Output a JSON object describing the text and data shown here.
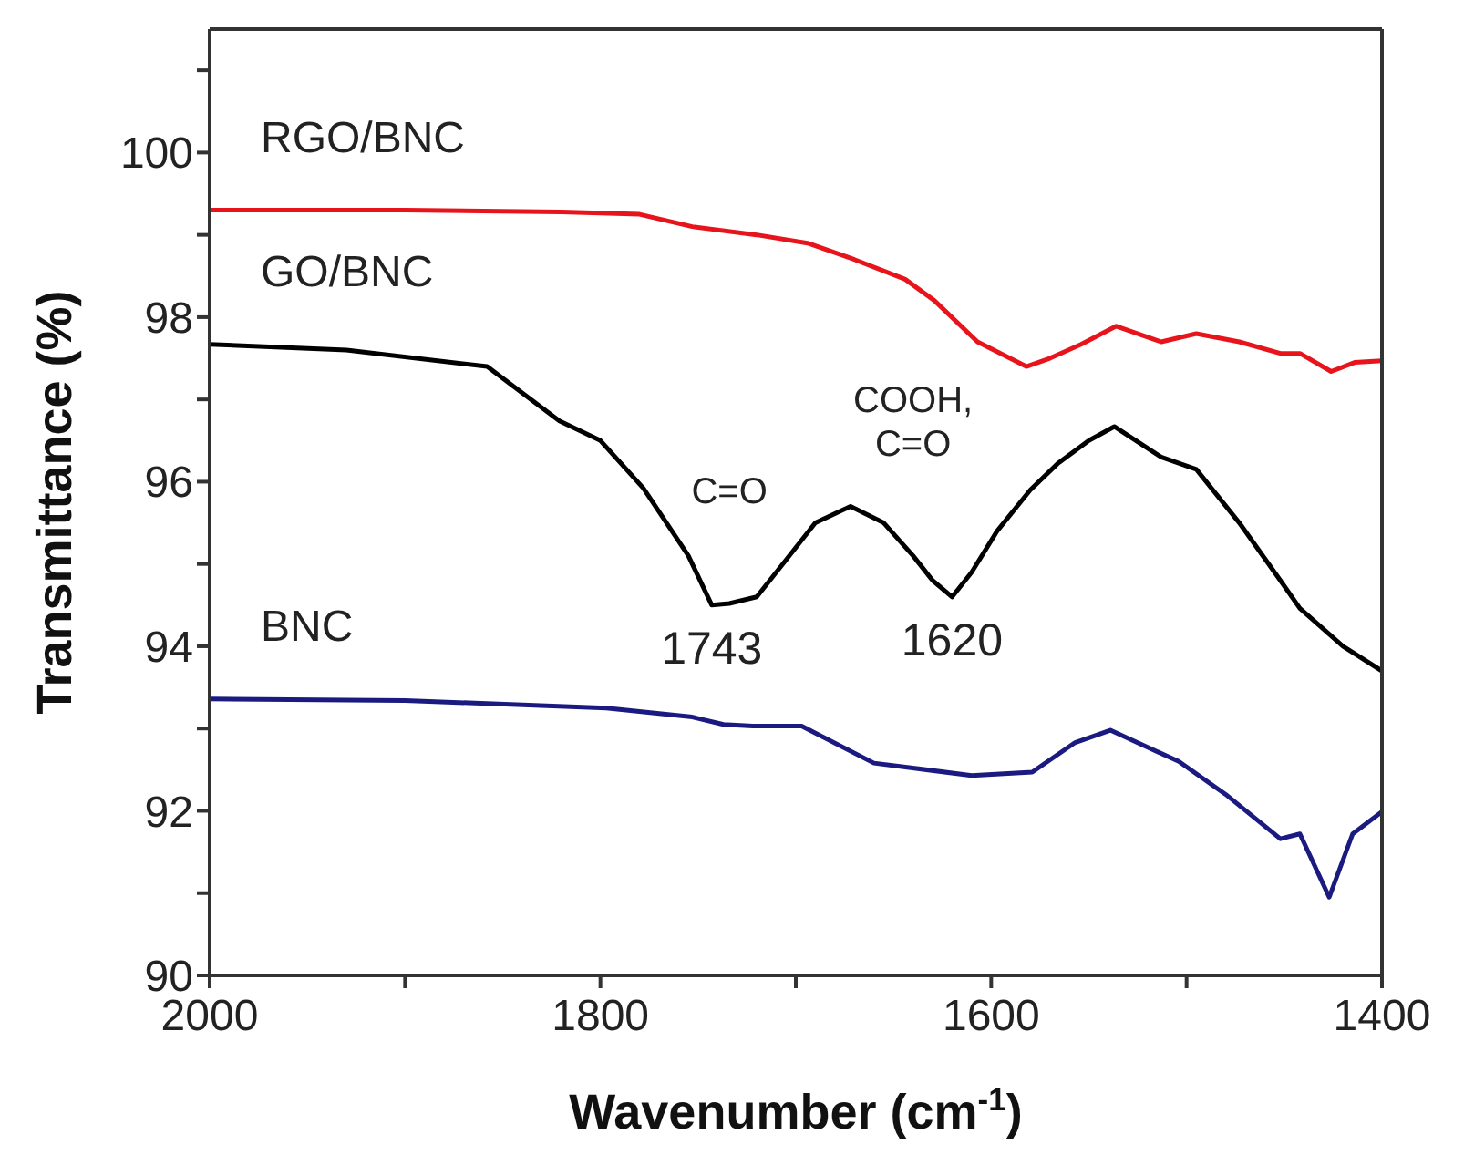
{
  "chart_data": {
    "type": "line",
    "xlabel": "Wavenumber (cm$^{-1}$)",
    "ylabel": "Transmittance (%)",
    "xlim": [
      2000,
      1400
    ],
    "xticks": [
      2000,
      {
        "value": 1900,
        "label": null
      },
      1800,
      {
        "value": 1700,
        "label": null
      },
      1600,
      {
        "value": 1500,
        "label": null
      },
      1400
    ],
    "ylim": [
      90,
      101.5
    ],
    "yticks": [
      90,
      {
        "value": 91,
        "label": null
      },
      92,
      {
        "value": 93,
        "label": null
      },
      94,
      {
        "value": 95,
        "label": null
      },
      96,
      {
        "value": 97,
        "label": null
      },
      98,
      {
        "value": 99,
        "label": null
      },
      100,
      {
        "value": 101,
        "label": null
      }
    ],
    "marker": "none",
    "line_style": "solid",
    "series": [
      {
        "name": "RGO/BNC",
        "color": "#e8141c",
        "x": [
          2000,
          1900,
          1820,
          1780,
          1753,
          1720,
          1694,
          1670,
          1644,
          1629,
          1607,
          1582,
          1570,
          1554,
          1536,
          1513,
          1495,
          1473,
          1452,
          1442,
          1426,
          1414,
          1400
        ],
        "values": [
          99.3,
          99.3,
          99.28,
          99.25,
          99.1,
          99.0,
          98.9,
          98.7,
          98.46,
          98.2,
          97.7,
          97.4,
          97.5,
          97.67,
          97.89,
          97.7,
          97.8,
          97.7,
          97.56,
          97.56,
          97.34,
          97.45,
          97.47
        ]
      },
      {
        "name": "GO/BNC",
        "color": "#000000",
        "x": [
          2000,
          1930,
          1858,
          1821,
          1800,
          1778,
          1755,
          1743,
          1734,
          1720,
          1705,
          1690,
          1672,
          1655,
          1640,
          1630,
          1620,
          1610,
          1597,
          1580,
          1566,
          1550,
          1537,
          1513,
          1495,
          1473,
          1452,
          1442,
          1420,
          1400
        ],
        "values": [
          97.67,
          97.6,
          97.4,
          96.74,
          96.5,
          95.92,
          95.1,
          94.5,
          94.52,
          94.6,
          95.05,
          95.5,
          95.7,
          95.5,
          95.1,
          94.8,
          94.6,
          94.9,
          95.4,
          95.9,
          96.22,
          96.5,
          96.67,
          96.3,
          96.15,
          95.5,
          94.8,
          94.46,
          94.0,
          93.7
        ]
      },
      {
        "name": "BNC",
        "color": "#1a1a80",
        "x": [
          2000,
          1900,
          1797,
          1753,
          1737,
          1722,
          1697,
          1660,
          1610,
          1579,
          1557,
          1539,
          1504,
          1480,
          1452,
          1442,
          1427,
          1415,
          1400
        ],
        "values": [
          93.36,
          93.34,
          93.25,
          93.14,
          93.05,
          93.03,
          93.03,
          92.58,
          92.43,
          92.47,
          92.83,
          92.98,
          92.6,
          92.2,
          91.66,
          91.72,
          90.95,
          91.72,
          91.99
        ]
      }
    ],
    "annotations": [
      {
        "text": "C=O",
        "x": 1734,
        "y": 94.52
      },
      {
        "text": "1743",
        "x": 1743,
        "y": 94.5
      },
      {
        "text": "COOH,\nC=O",
        "x": 1640,
        "y": 95.1
      },
      {
        "text": "1620",
        "x": 1620,
        "y": 94.6
      }
    ]
  }
}
